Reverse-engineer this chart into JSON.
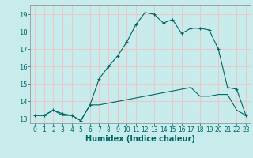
{
  "title": "",
  "xlabel": "Humidex (Indice chaleur)",
  "background_color": "#c8ecec",
  "grid_color": "#e8c8c8",
  "line_color": "#006666",
  "xlim": [
    -0.5,
    23.5
  ],
  "ylim": [
    12.75,
    19.55
  ],
  "xticks": [
    0,
    1,
    2,
    3,
    4,
    5,
    6,
    7,
    8,
    9,
    10,
    11,
    12,
    13,
    14,
    15,
    16,
    17,
    18,
    19,
    20,
    21,
    22,
    23
  ],
  "yticks": [
    13,
    14,
    15,
    16,
    17,
    18,
    19
  ],
  "curve1_x": [
    0,
    1,
    2,
    3,
    4,
    5,
    6,
    7,
    8,
    9,
    10,
    11,
    12,
    13,
    14,
    15,
    16,
    17,
    18,
    19,
    20,
    21,
    22,
    23
  ],
  "curve1_y": [
    13.2,
    13.2,
    13.5,
    13.2,
    13.2,
    12.9,
    13.8,
    13.8,
    13.9,
    14.0,
    14.1,
    14.2,
    14.3,
    14.4,
    14.5,
    14.6,
    14.7,
    14.8,
    14.3,
    14.3,
    14.4,
    14.4,
    13.5,
    13.2
  ],
  "curve2_x": [
    0,
    1,
    2,
    3,
    4,
    5,
    6,
    7,
    8,
    9,
    10,
    11,
    12,
    13,
    14,
    15,
    16,
    17,
    18,
    19,
    20,
    21,
    22,
    23
  ],
  "curve2_y": [
    13.2,
    13.2,
    13.5,
    13.3,
    13.2,
    12.9,
    13.8,
    15.3,
    16.0,
    16.6,
    17.4,
    18.4,
    19.1,
    19.0,
    18.5,
    18.7,
    17.9,
    18.2,
    18.2,
    18.1,
    17.0,
    14.8,
    14.7,
    13.2
  ],
  "xlabel_fontsize": 7,
  "tick_fontsize": 5.5,
  "ytick_fontsize": 6
}
